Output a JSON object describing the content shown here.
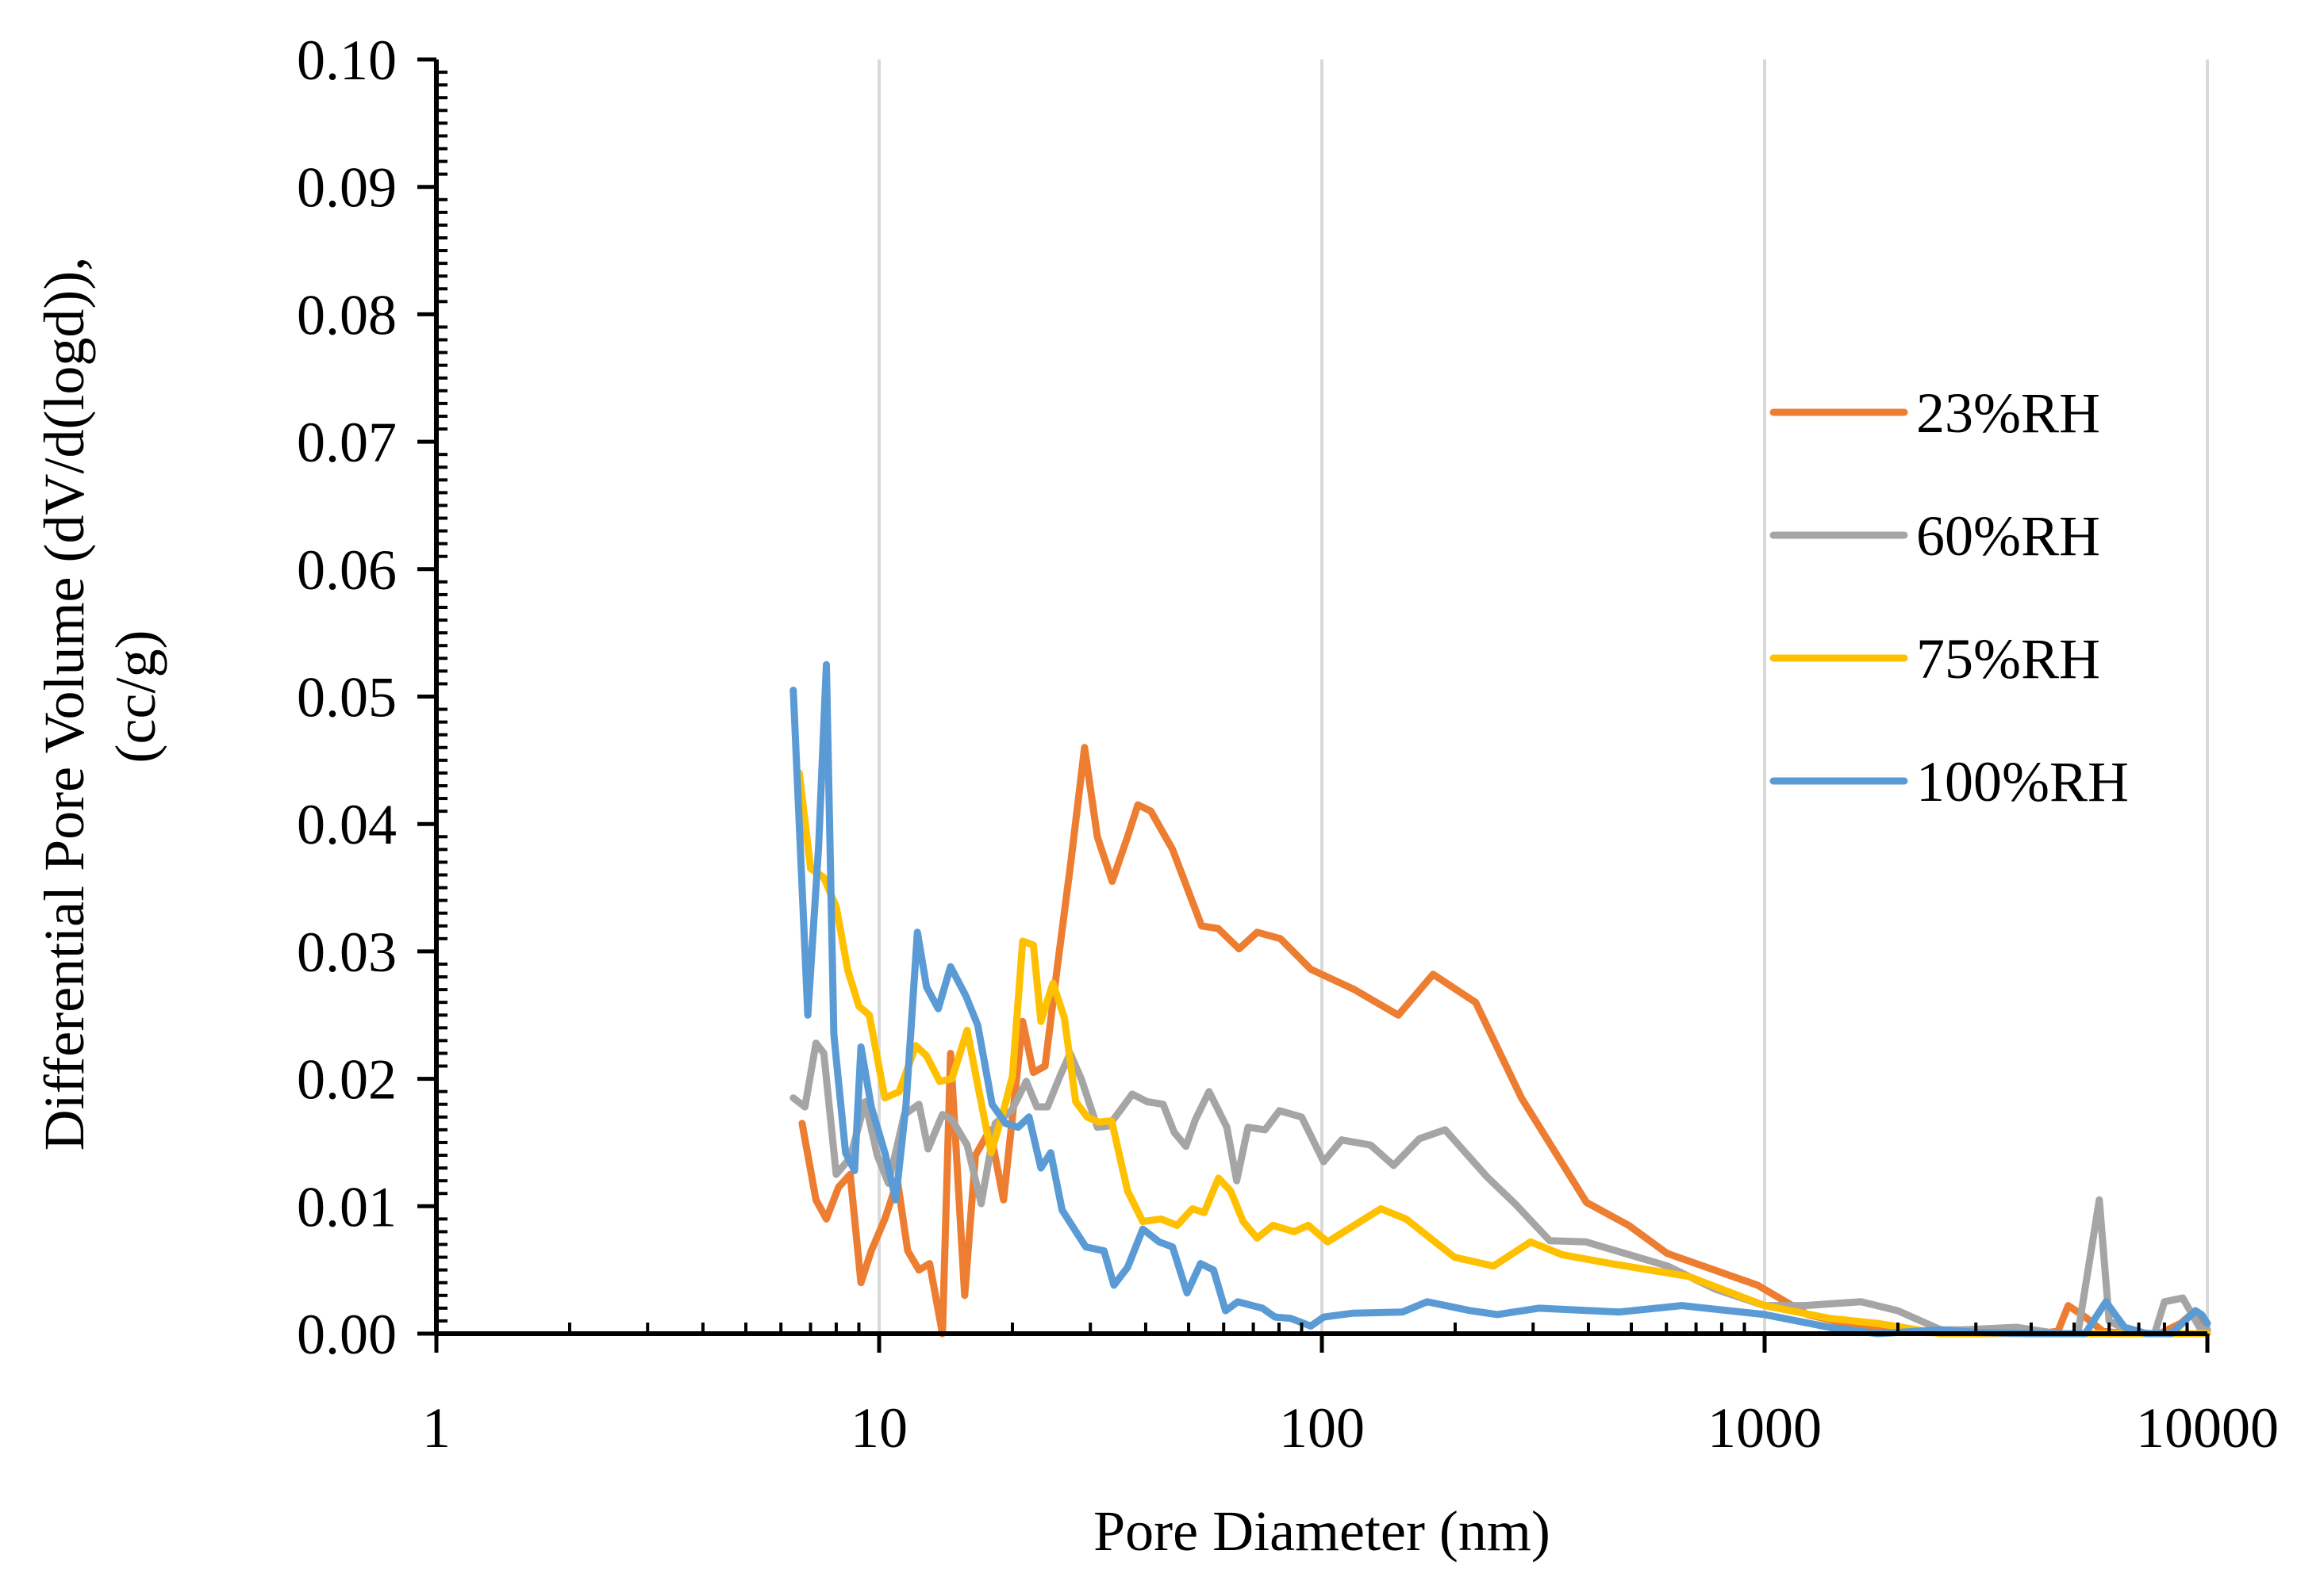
{
  "chart_data": {
    "type": "line",
    "xscale": "log",
    "xlabel": "Pore Diameter (nm)",
    "ylabel": "Differential Pore Volume (dV/d(logd)), (cc/g)",
    "ylabel_lines": [
      "Differential Pore Volume (dV/d(logd)),",
      "(cc/g)"
    ],
    "xlim": [
      1,
      10000
    ],
    "ylim": [
      0,
      0.1
    ],
    "x_ticks": [
      1,
      10,
      100,
      1000,
      10000
    ],
    "x_tick_labels": [
      "1",
      "10",
      "100",
      "1000",
      "10000"
    ],
    "y_ticks": [
      0,
      0.01,
      0.02,
      0.03,
      0.04,
      0.05,
      0.06,
      0.07,
      0.08,
      0.09,
      0.1
    ],
    "y_tick_labels": [
      "0.00",
      "0.01",
      "0.02",
      "0.03",
      "0.04",
      "0.05",
      "0.06",
      "0.07",
      "0.08",
      "0.09",
      "0.10"
    ],
    "grid": "vertical major",
    "legend_position": "right",
    "series": [
      {
        "name": "23%RH",
        "color": "#ED7D31",
        "points": [
          [
            6.7,
            0.0165
          ],
          [
            7.2,
            0.0105
          ],
          [
            7.6,
            0.009
          ],
          [
            8.1,
            0.0115
          ],
          [
            8.6,
            0.0125
          ],
          [
            9.1,
            0.004
          ],
          [
            9.6,
            0.0065
          ],
          [
            10.3,
            0.009
          ],
          [
            11.0,
            0.012
          ],
          [
            11.6,
            0.0065
          ],
          [
            12.3,
            0.005
          ],
          [
            13.0,
            0.0055
          ],
          [
            13.9,
            0.0
          ],
          [
            14.5,
            0.022
          ],
          [
            15.6,
            0.003
          ],
          [
            16.5,
            0.014
          ],
          [
            17.8,
            0.016
          ],
          [
            19.1,
            0.0105
          ],
          [
            20.0,
            0.017
          ],
          [
            21.1,
            0.0245
          ],
          [
            22.3,
            0.0205
          ],
          [
            23.7,
            0.021
          ],
          [
            25.2,
            0.0285
          ],
          [
            27.1,
            0.037
          ],
          [
            29.1,
            0.046
          ],
          [
            31.1,
            0.039
          ],
          [
            33.6,
            0.0355
          ],
          [
            36.4,
            0.039
          ],
          [
            38.4,
            0.0415
          ],
          [
            41.1,
            0.041
          ],
          [
            46.0,
            0.038
          ],
          [
            53.5,
            0.032
          ],
          [
            58.3,
            0.0318
          ],
          [
            65.0,
            0.0302
          ],
          [
            71.4,
            0.0315
          ],
          [
            80.6,
            0.031
          ],
          [
            94.4,
            0.0286
          ],
          [
            118.5,
            0.027
          ],
          [
            148.8,
            0.025
          ],
          [
            178.3,
            0.0282
          ],
          [
            222.5,
            0.026
          ],
          [
            282.3,
            0.0185
          ],
          [
            396.0,
            0.0103
          ],
          [
            493.0,
            0.0085
          ],
          [
            602.0,
            0.0063
          ],
          [
            964.0,
            0.0038
          ],
          [
            1250.0,
            0.0015
          ],
          [
            1650.0,
            0.0005
          ],
          [
            2200.0,
            0.0001
          ],
          [
            3300.0,
            0.0
          ],
          [
            4200.0,
            0.0
          ],
          [
            4600.0,
            0.0002
          ],
          [
            4850.0,
            0.0022
          ],
          [
            5300.0,
            0.0013
          ],
          [
            5800.0,
            0.0002
          ],
          [
            6500.0,
            0.0
          ],
          [
            7800.0,
            0.0
          ],
          [
            8700.0,
            0.0008
          ],
          [
            9400.0,
            0.0018
          ],
          [
            9800.0,
            0.001
          ],
          [
            10000.0,
            0.0003
          ]
        ]
      },
      {
        "name": "60%RH",
        "color": "#A5A5A5",
        "points": [
          [
            6.4,
            0.0185
          ],
          [
            6.8,
            0.0178
          ],
          [
            7.2,
            0.0228
          ],
          [
            7.5,
            0.022
          ],
          [
            8.0,
            0.0125
          ],
          [
            8.6,
            0.0138
          ],
          [
            9.3,
            0.0182
          ],
          [
            9.9,
            0.014
          ],
          [
            10.5,
            0.0118
          ],
          [
            11.4,
            0.0172
          ],
          [
            12.3,
            0.018
          ],
          [
            12.9,
            0.0145
          ],
          [
            13.9,
            0.0172
          ],
          [
            14.6,
            0.0168
          ],
          [
            15.8,
            0.0148
          ],
          [
            17.0,
            0.0102
          ],
          [
            18.3,
            0.0165
          ],
          [
            19.9,
            0.0175
          ],
          [
            21.5,
            0.0198
          ],
          [
            22.7,
            0.0178
          ],
          [
            24.0,
            0.0178
          ],
          [
            25.6,
            0.0202
          ],
          [
            27.0,
            0.022
          ],
          [
            28.6,
            0.02
          ],
          [
            31.1,
            0.0162
          ],
          [
            33.0,
            0.0163
          ],
          [
            37.3,
            0.0188
          ],
          [
            40.3,
            0.0182
          ],
          [
            43.8,
            0.018
          ],
          [
            46.4,
            0.0158
          ],
          [
            49.3,
            0.0147
          ],
          [
            51.8,
            0.0168
          ],
          [
            55.6,
            0.019
          ],
          [
            61.0,
            0.0162
          ],
          [
            64.2,
            0.012
          ],
          [
            68.1,
            0.0162
          ],
          [
            74.4,
            0.016
          ],
          [
            80.2,
            0.0175
          ],
          [
            90.0,
            0.017
          ],
          [
            100.9,
            0.0135
          ],
          [
            110.8,
            0.0152
          ],
          [
            128.9,
            0.0148
          ],
          [
            145.2,
            0.0132
          ],
          [
            166.1,
            0.0153
          ],
          [
            189.8,
            0.016
          ],
          [
            236.0,
            0.0123
          ],
          [
            273.0,
            0.0102
          ],
          [
            327.0,
            0.0073
          ],
          [
            395.0,
            0.0072
          ],
          [
            604.0,
            0.0053
          ],
          [
            773.0,
            0.0035
          ],
          [
            1000.0,
            0.0022
          ],
          [
            1230.0,
            0.0022
          ],
          [
            1650.0,
            0.0025
          ],
          [
            2000.0,
            0.0018
          ],
          [
            2500.0,
            0.0003
          ],
          [
            2800.0,
            0.0003
          ],
          [
            3700.0,
            0.0005
          ],
          [
            4600.0,
            0.0
          ],
          [
            5100.0,
            0.0
          ],
          [
            5700.0,
            0.0105
          ],
          [
            6000.0,
            0.001
          ],
          [
            6700.0,
            0.0001
          ],
          [
            7600.0,
            0.0
          ],
          [
            8000.0,
            0.0025
          ],
          [
            8800.0,
            0.0028
          ],
          [
            9600.0,
            0.0005
          ],
          [
            10000.0,
            0.0003
          ]
        ]
      },
      {
        "name": "75%RH",
        "color": "#FFC000",
        "points": [
          [
            6.6,
            0.044
          ],
          [
            7.0,
            0.0365
          ],
          [
            7.5,
            0.0358
          ],
          [
            8.0,
            0.0335
          ],
          [
            8.5,
            0.0285
          ],
          [
            9.0,
            0.0257
          ],
          [
            9.5,
            0.025
          ],
          [
            10.3,
            0.0185
          ],
          [
            11.1,
            0.019
          ],
          [
            12.1,
            0.0226
          ],
          [
            12.8,
            0.0218
          ],
          [
            13.7,
            0.0198
          ],
          [
            14.6,
            0.02
          ],
          [
            15.8,
            0.0238
          ],
          [
            16.7,
            0.0195
          ],
          [
            17.9,
            0.0142
          ],
          [
            19.1,
            0.0175
          ],
          [
            20.0,
            0.0202
          ],
          [
            21.1,
            0.0308
          ],
          [
            22.3,
            0.0305
          ],
          [
            23.2,
            0.0245
          ],
          [
            24.7,
            0.0275
          ],
          [
            26.2,
            0.0248
          ],
          [
            27.8,
            0.0182
          ],
          [
            29.5,
            0.017
          ],
          [
            31.3,
            0.0166
          ],
          [
            33.5,
            0.0167
          ],
          [
            36.4,
            0.0112
          ],
          [
            39.4,
            0.0088
          ],
          [
            43.3,
            0.009
          ],
          [
            47.1,
            0.0085
          ],
          [
            51.0,
            0.0098
          ],
          [
            54.2,
            0.0095
          ],
          [
            58.4,
            0.0122
          ],
          [
            62.2,
            0.0112
          ],
          [
            66.4,
            0.0088
          ],
          [
            71.4,
            0.0075
          ],
          [
            77.6,
            0.0085
          ],
          [
            86.6,
            0.008
          ],
          [
            93.2,
            0.0085
          ],
          [
            103.0,
            0.0072
          ],
          [
            135.9,
            0.0098
          ],
          [
            155.0,
            0.009
          ],
          [
            199.3,
            0.006
          ],
          [
            244.0,
            0.0053
          ],
          [
            296.0,
            0.0072
          ],
          [
            349.0,
            0.0062
          ],
          [
            449.0,
            0.0055
          ],
          [
            672.0,
            0.0045
          ],
          [
            1000.0,
            0.0022
          ],
          [
            1400.0,
            0.0012
          ],
          [
            1800.0,
            0.0008
          ],
          [
            2500.0,
            0.0
          ],
          [
            3500.0,
            0.0
          ],
          [
            5000.0,
            0.0
          ],
          [
            6000.0,
            0.0
          ],
          [
            8000.0,
            0.0
          ],
          [
            10000.0,
            0.0
          ]
        ]
      },
      {
        "name": "100%RH",
        "color": "#5B9BD5",
        "points": [
          [
            6.4,
            0.0505
          ],
          [
            6.9,
            0.025
          ],
          [
            7.3,
            0.0382
          ],
          [
            7.6,
            0.0525
          ],
          [
            7.9,
            0.0235
          ],
          [
            8.4,
            0.0142
          ],
          [
            8.8,
            0.0128
          ],
          [
            9.1,
            0.0225
          ],
          [
            9.6,
            0.0178
          ],
          [
            10.3,
            0.0142
          ],
          [
            10.9,
            0.0105
          ],
          [
            11.5,
            0.018
          ],
          [
            12.2,
            0.0315
          ],
          [
            12.8,
            0.0272
          ],
          [
            13.6,
            0.0255
          ],
          [
            14.5,
            0.0288
          ],
          [
            15.7,
            0.0265
          ],
          [
            16.7,
            0.0242
          ],
          [
            18.0,
            0.018
          ],
          [
            19.3,
            0.0165
          ],
          [
            20.6,
            0.0162
          ],
          [
            21.8,
            0.017
          ],
          [
            23.2,
            0.013
          ],
          [
            24.4,
            0.0142
          ],
          [
            25.9,
            0.0097
          ],
          [
            27.6,
            0.0082
          ],
          [
            29.3,
            0.0068
          ],
          [
            32.2,
            0.0065
          ],
          [
            33.9,
            0.0038
          ],
          [
            36.4,
            0.0052
          ],
          [
            39.4,
            0.0082
          ],
          [
            42.9,
            0.0072
          ],
          [
            46.0,
            0.0068
          ],
          [
            49.6,
            0.0032
          ],
          [
            53.2,
            0.0055
          ],
          [
            56.9,
            0.005
          ],
          [
            60.6,
            0.0018
          ],
          [
            64.6,
            0.0025
          ],
          [
            73.4,
            0.002
          ],
          [
            78.4,
            0.0013
          ],
          [
            85.0,
            0.0012
          ],
          [
            94.4,
            0.0006
          ],
          [
            101.0,
            0.0013
          ],
          [
            117.0,
            0.0016
          ],
          [
            152.0,
            0.0017
          ],
          [
            173.0,
            0.0025
          ],
          [
            217.0,
            0.0018
          ],
          [
            249.0,
            0.0015
          ],
          [
            309.0,
            0.002
          ],
          [
            470.0,
            0.0017
          ],
          [
            650.0,
            0.0022
          ],
          [
            1000.0,
            0.0015
          ],
          [
            1400.0,
            0.0005
          ],
          [
            1800.0,
            0.0
          ],
          [
            2500.0,
            0.0003
          ],
          [
            3000.0,
            0.0001
          ],
          [
            4000.0,
            0.0
          ],
          [
            5300.0,
            0.0
          ],
          [
            5900.0,
            0.0025
          ],
          [
            6500.0,
            0.0005
          ],
          [
            7300.0,
            0.0
          ],
          [
            8300.0,
            0.0
          ],
          [
            9400.0,
            0.0018
          ],
          [
            9700.0,
            0.0015
          ],
          [
            10000.0,
            0.0008
          ]
        ]
      }
    ]
  }
}
